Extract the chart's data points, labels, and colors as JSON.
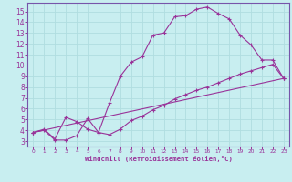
{
  "xlabel": "Windchill (Refroidissement éolien,°C)",
  "bg_color": "#c8eef0",
  "grid_color": "#b0dde0",
  "line_color": "#993399",
  "spine_color": "#7755aa",
  "xlim": [
    -0.5,
    23.5
  ],
  "ylim": [
    2.5,
    15.8
  ],
  "xticks": [
    0,
    1,
    2,
    3,
    4,
    5,
    6,
    7,
    8,
    9,
    10,
    11,
    12,
    13,
    14,
    15,
    16,
    17,
    18,
    19,
    20,
    21,
    22,
    23
  ],
  "yticks": [
    3,
    4,
    5,
    6,
    7,
    8,
    9,
    10,
    11,
    12,
    13,
    14,
    15
  ],
  "line1_x": [
    0,
    1,
    2,
    3,
    4,
    5,
    6,
    7,
    8,
    9,
    10,
    11,
    12,
    13,
    14,
    15,
    16,
    17,
    18,
    19,
    20,
    21,
    22,
    23
  ],
  "line1_y": [
    3.8,
    4.1,
    3.2,
    5.2,
    4.8,
    4.1,
    3.8,
    6.5,
    9.0,
    10.3,
    10.8,
    12.8,
    13.0,
    14.5,
    14.6,
    15.2,
    15.4,
    14.8,
    14.3,
    12.8,
    11.9,
    10.5,
    10.5,
    8.8
  ],
  "line2_x": [
    0,
    1,
    2,
    3,
    4,
    5,
    6,
    7,
    8,
    9,
    10,
    11,
    12,
    13,
    14,
    15,
    16,
    17,
    18,
    19,
    20,
    21,
    22,
    23
  ],
  "line2_y": [
    3.8,
    4.0,
    3.1,
    3.1,
    3.5,
    5.1,
    3.8,
    3.6,
    4.1,
    4.9,
    5.3,
    5.9,
    6.3,
    6.9,
    7.3,
    7.7,
    8.0,
    8.4,
    8.8,
    9.2,
    9.5,
    9.8,
    10.1,
    8.8
  ],
  "line3_x": [
    0,
    23
  ],
  "line3_y": [
    3.8,
    8.8
  ]
}
